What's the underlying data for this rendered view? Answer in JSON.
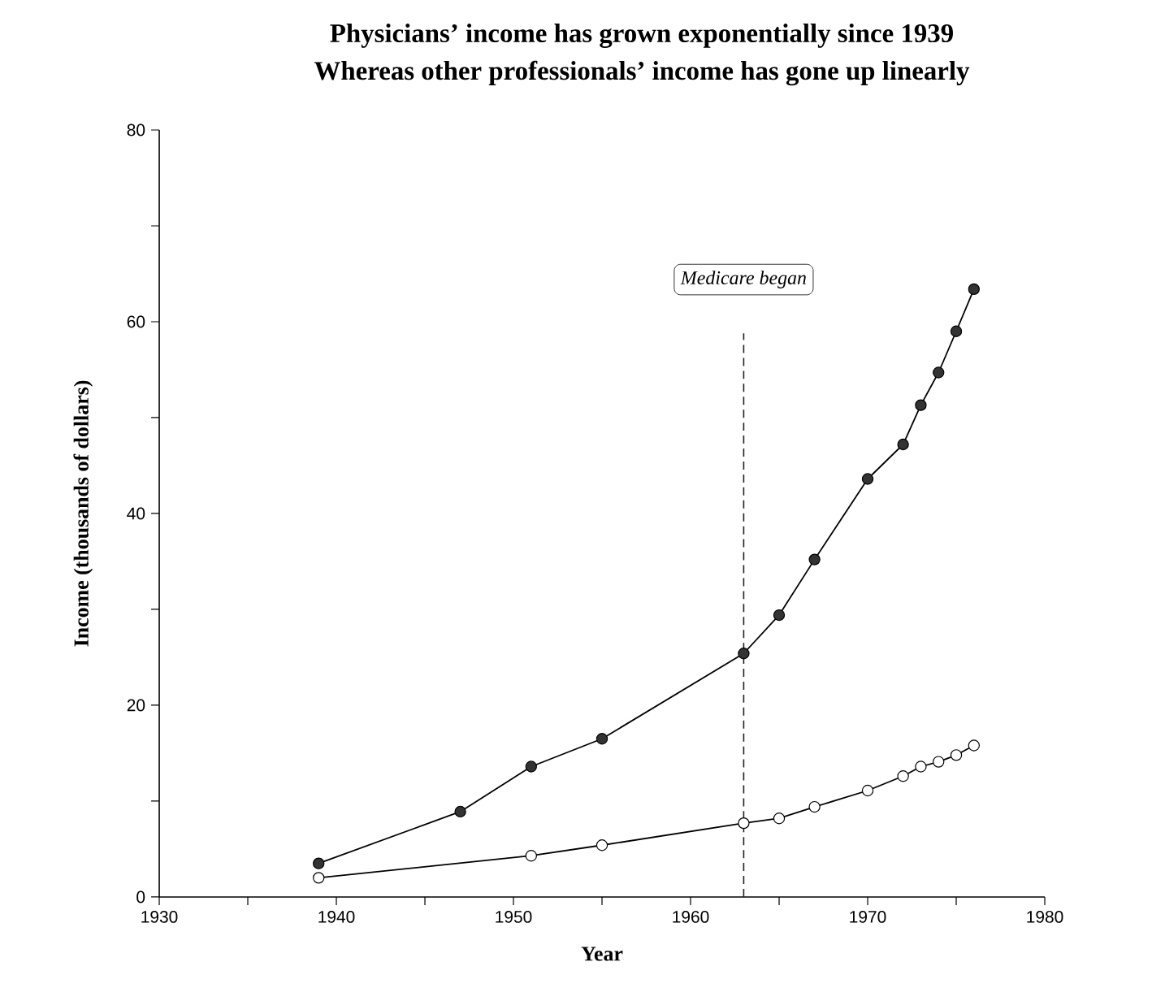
{
  "chart_data": {
    "type": "line",
    "title": "Physicians’ income has grown exponentially since 1939",
    "subtitle": "Whereas other professionals’ income has gone up linearly",
    "xlabel": "Year",
    "ylabel": "Income (thousands of dollars)",
    "xlim": [
      1930,
      1980
    ],
    "xticks": [
      1930,
      {
        "value": 1935,
        "label": null
      },
      1940,
      {
        "value": 1945,
        "label": null
      },
      1950,
      {
        "value": 1955,
        "label": null
      },
      1960,
      {
        "value": 1965,
        "label": null
      },
      1970,
      {
        "value": 1975,
        "label": null
      },
      1980
    ],
    "ylim": [
      0,
      80
    ],
    "yticks": [
      0,
      {
        "value": 10,
        "label": null
      },
      20,
      {
        "value": 30,
        "label": null
      },
      40,
      {
        "value": 50,
        "label": null
      },
      60,
      {
        "value": 70,
        "label": null
      },
      80
    ],
    "grid": false,
    "marker": "circle",
    "line_style": "solid",
    "ref_lines": [
      {
        "axis": "x",
        "value": 1963,
        "label": "Medicare began",
        "line_style": "dashed",
        "color": "#222222"
      }
    ],
    "series": [
      {
        "color": "#333333",
        "x": [
          1939,
          1947,
          1951,
          1955,
          1963,
          1965,
          1967,
          1970,
          1972,
          1973,
          1974,
          1975,
          1976
        ],
        "values": [
          3.5,
          8.9,
          13.6,
          16.5,
          25.4,
          29.4,
          35.2,
          43.6,
          47.2,
          51.3,
          54.7,
          59.0,
          63.4
        ]
      },
      {
        "color": "#ffffff",
        "x": [
          1939,
          1951,
          1955,
          1963,
          1965,
          1967,
          1970,
          1972,
          1973,
          1974,
          1975,
          1976
        ],
        "values": [
          2.0,
          4.3,
          5.4,
          7.7,
          8.2,
          9.4,
          11.1,
          12.6,
          13.6,
          14.1,
          14.8,
          15.8
        ]
      }
    ]
  }
}
